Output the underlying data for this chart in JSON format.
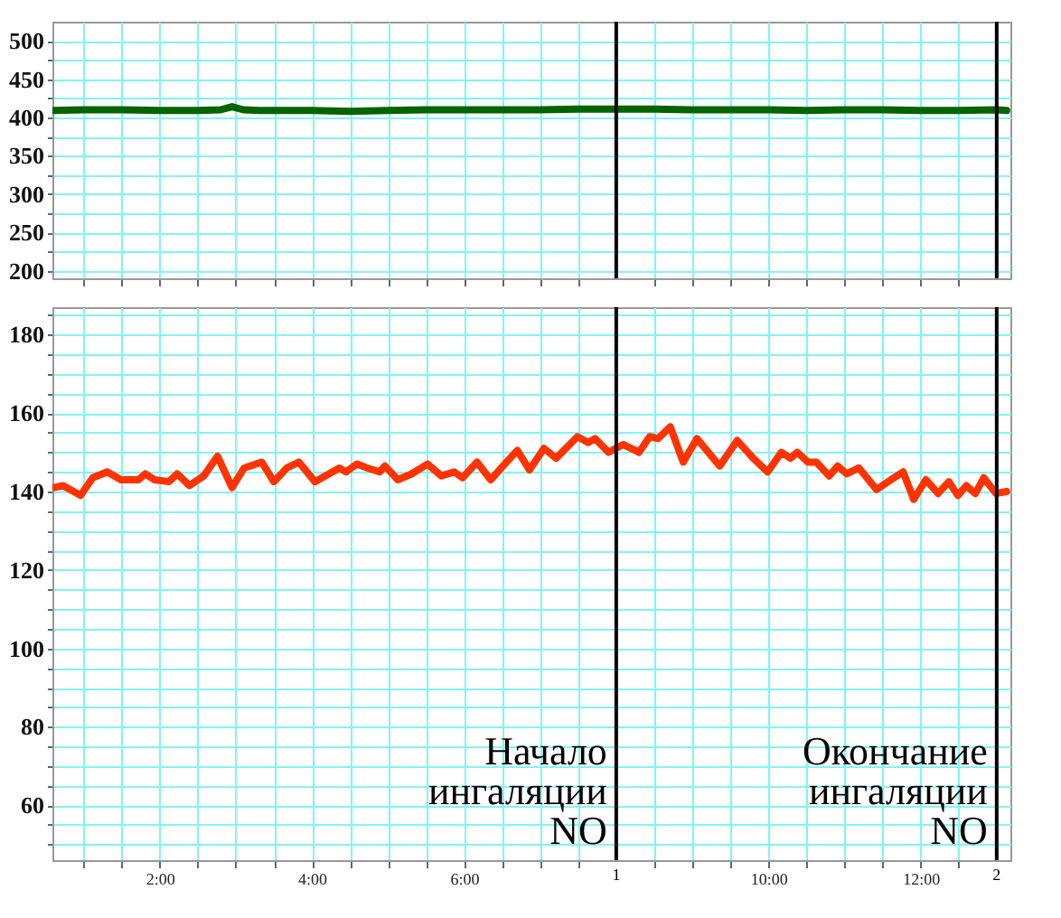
{
  "chart_data": [
    {
      "type": "line",
      "tick_labels": "y",
      "grid": true,
      "xlim": [
        0.59,
        13.18
      ],
      "ylim": [
        190,
        525
      ],
      "xticks": [
        {
          "value": 1,
          "label": null
        },
        {
          "value": 1.5,
          "label": null
        },
        {
          "value": 2,
          "label": null
        },
        {
          "value": 2.5,
          "label": null
        },
        {
          "value": 3,
          "label": null
        },
        {
          "value": 3.5,
          "label": null
        },
        {
          "value": 4,
          "label": null
        },
        {
          "value": 4.5,
          "label": null
        },
        {
          "value": 5,
          "label": null
        },
        {
          "value": 5.5,
          "label": null
        },
        {
          "value": 6,
          "label": null
        },
        {
          "value": 6.5,
          "label": null
        },
        {
          "value": 7,
          "label": null
        },
        {
          "value": 7.5,
          "label": null
        },
        {
          "value": 8.5,
          "label": null
        },
        {
          "value": 9,
          "label": null
        },
        {
          "value": 9.5,
          "label": null
        },
        {
          "value": 10,
          "label": null
        },
        {
          "value": 10.5,
          "label": null
        },
        {
          "value": 11,
          "label": null
        },
        {
          "value": 11.5,
          "label": null
        },
        {
          "value": 12,
          "label": null
        },
        {
          "value": 12.5,
          "label": null
        }
      ],
      "yticks": [
        200,
        {
          "value": 225,
          "label": null
        },
        250,
        {
          "value": 275,
          "label": null
        },
        300,
        {
          "value": 325,
          "label": null
        },
        350,
        {
          "value": 375,
          "label": null
        },
        400,
        {
          "value": 425,
          "label": null
        },
        450,
        {
          "value": 475,
          "label": null
        },
        500
      ],
      "series": [
        {
          "color": "#006400",
          "x": [
            0.61,
            1.0,
            1.5,
            2.0,
            2.5,
            2.8,
            2.95,
            3.1,
            3.3,
            4.0,
            4.5,
            5.0,
            5.5,
            6.0,
            6.5,
            7.0,
            7.5,
            8.0,
            8.5,
            9.0,
            9.5,
            10.0,
            10.5,
            11.0,
            11.5,
            12.0,
            12.5,
            13.0,
            13.13
          ],
          "values": [
            409,
            410,
            410,
            409,
            409,
            410,
            414,
            410,
            409,
            409,
            408,
            409,
            410,
            410,
            410,
            410,
            411,
            411,
            411,
            410,
            410,
            410,
            409,
            410,
            410,
            409,
            409,
            410,
            409
          ]
        }
      ],
      "ref_lines": [
        {
          "axis": "x",
          "value": 8,
          "color": "#000000"
        },
        {
          "axis": "x",
          "value": 13,
          "color": "#000000"
        }
      ]
    },
    {
      "type": "line",
      "grid": true,
      "xlim": [
        0.59,
        13.18
      ],
      "ylim": [
        46,
        187
      ],
      "xticks": [
        {
          "value": 1,
          "label": null
        },
        {
          "value": 1.5,
          "label": null
        },
        {
          "value": 2,
          "label": "2:00"
        },
        {
          "value": 2.5,
          "label": null
        },
        {
          "value": 3,
          "label": null
        },
        {
          "value": 3.5,
          "label": null
        },
        {
          "value": 4,
          "label": "4:00"
        },
        {
          "value": 4.5,
          "label": null
        },
        {
          "value": 5,
          "label": null
        },
        {
          "value": 5.5,
          "label": null
        },
        {
          "value": 6,
          "label": "6:00"
        },
        {
          "value": 6.5,
          "label": null
        },
        {
          "value": 7,
          "label": null
        },
        {
          "value": 7.5,
          "label": null
        },
        {
          "value": 8.5,
          "label": null
        },
        {
          "value": 9,
          "label": null
        },
        {
          "value": 9.5,
          "label": null
        },
        {
          "value": 10,
          "label": "10:00"
        },
        {
          "value": 10.5,
          "label": null
        },
        {
          "value": 11,
          "label": null
        },
        {
          "value": 11.5,
          "label": null
        },
        {
          "value": 12,
          "label": "12:00"
        },
        {
          "value": 12.5,
          "label": null
        }
      ],
      "yticks": [
        {
          "value": 50,
          "label": null
        },
        {
          "value": 55,
          "label": null
        },
        60,
        {
          "value": 65,
          "label": null
        },
        {
          "value": 70,
          "label": null
        },
        {
          "value": 75,
          "label": null
        },
        80,
        {
          "value": 85,
          "label": null
        },
        {
          "value": 90,
          "label": null
        },
        {
          "value": 95,
          "label": null
        },
        100,
        {
          "value": 105,
          "label": null
        },
        {
          "value": 110,
          "label": null
        },
        {
          "value": 115,
          "label": null
        },
        120,
        {
          "value": 125,
          "label": null
        },
        {
          "value": 130,
          "label": null
        },
        {
          "value": 135,
          "label": null
        },
        140,
        {
          "value": 145,
          "label": null
        },
        {
          "value": 150,
          "label": null
        },
        {
          "value": 155,
          "label": null
        },
        160,
        {
          "value": 165,
          "label": null
        },
        {
          "value": 170,
          "label": null
        },
        {
          "value": 175,
          "label": null
        },
        180,
        {
          "value": 185,
          "label": null
        }
      ],
      "series": [
        {
          "color": "#ff3300",
          "x": [
            0.61,
            0.73,
            0.96,
            1.12,
            1.31,
            1.49,
            1.72,
            1.81,
            1.93,
            2.12,
            2.23,
            2.39,
            2.58,
            2.76,
            2.95,
            3.11,
            3.34,
            3.5,
            3.67,
            3.83,
            4.04,
            4.36,
            4.45,
            4.59,
            4.73,
            4.89,
            4.96,
            5.13,
            5.31,
            5.52,
            5.7,
            5.87,
            5.98,
            6.17,
            6.35,
            6.51,
            6.7,
            6.86,
            7.05,
            7.21,
            7.49,
            7.63,
            7.72,
            7.9,
            8.09,
            8.3,
            8.44,
            8.55,
            8.71,
            8.88,
            9.06,
            9.36,
            9.59,
            9.8,
            9.99,
            10.17,
            10.29,
            10.38,
            10.52,
            10.63,
            10.8,
            10.91,
            11.03,
            11.19,
            11.42,
            11.61,
            11.77,
            11.91,
            12.07,
            12.23,
            12.37,
            12.49,
            12.6,
            12.72,
            12.83,
            12.99,
            13.13
          ],
          "values": [
            141,
            141.5,
            139,
            143.5,
            145,
            143,
            143,
            144.5,
            143,
            142.5,
            144.5,
            141.5,
            144,
            149,
            141,
            146,
            147.5,
            142.5,
            146,
            147.5,
            142.5,
            146,
            145,
            147,
            146,
            145,
            146.5,
            143,
            144.5,
            147,
            144,
            145,
            143.5,
            147.5,
            143,
            146.5,
            150.5,
            145.5,
            151,
            148.5,
            154,
            152.5,
            153.5,
            150,
            152,
            150,
            154,
            153.5,
            156.5,
            147.5,
            153.5,
            146.5,
            153,
            148.5,
            145,
            150,
            148.5,
            150,
            147.5,
            147.5,
            144,
            146.5,
            144.5,
            146,
            140.5,
            143,
            145,
            138,
            143,
            139.5,
            142.5,
            139,
            141.5,
            139.5,
            143.5,
            139.5,
            140
          ]
        }
      ],
      "ref_lines": [
        {
          "axis": "x",
          "value": 8,
          "color": "#000000",
          "label": "Начало ингаляции NO"
        },
        {
          "axis": "x",
          "value": 13,
          "color": "#000000",
          "label": "Окончание ингаляции NO"
        }
      ],
      "annotations": [
        "1",
        "2"
      ]
    }
  ]
}
